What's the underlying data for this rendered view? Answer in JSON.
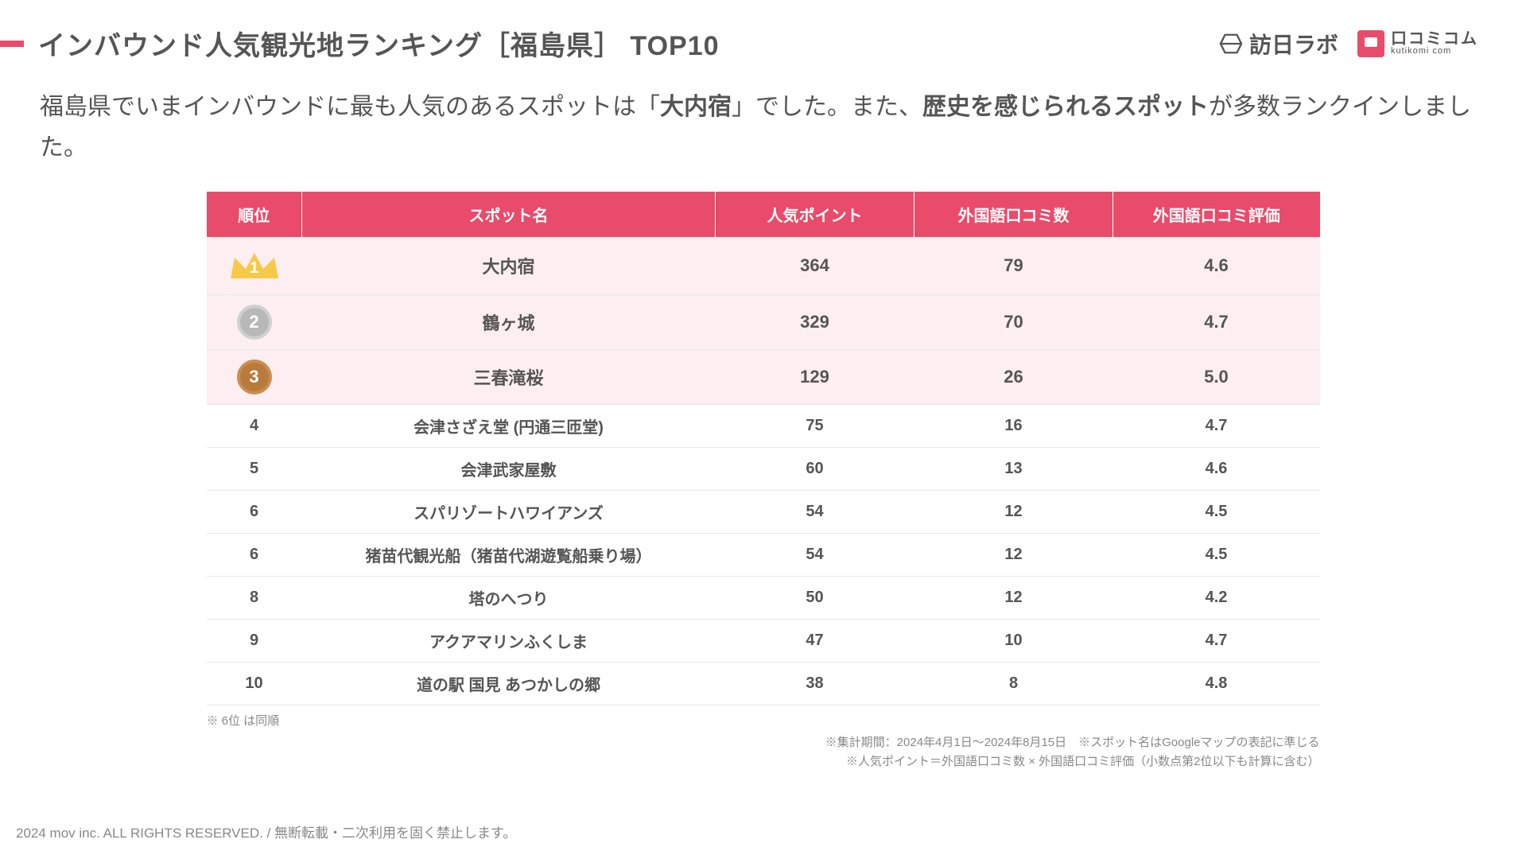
{
  "header": {
    "title": "インバウンド人気観光地ランキング［福島県］ TOP10",
    "logo1": "訪日ラボ",
    "logo2_jp": "口コミコム",
    "logo2_en": "kutikomi com"
  },
  "intro": {
    "pre": "福島県でいまインバウンドに最も人気のあるスポットは「",
    "bold1": "大内宿",
    "mid": "」でした。また、",
    "bold2": "歴史を感じられるスポット",
    "post": "が多数ランクインしました。"
  },
  "table": {
    "columns": [
      "順位",
      "スポット名",
      "人気ポイント",
      "外国語口コミ数",
      "外国語口コミ評価"
    ],
    "rows": [
      {
        "rank": "1",
        "name": "大内宿",
        "points": "364",
        "reviews": "79",
        "rating": "4.6",
        "medal": "gold"
      },
      {
        "rank": "2",
        "name": "鶴ヶ城",
        "points": "329",
        "reviews": "70",
        "rating": "4.7",
        "medal": "silver"
      },
      {
        "rank": "3",
        "name": "三春滝桜",
        "points": "129",
        "reviews": "26",
        "rating": "5.0",
        "medal": "bronze"
      },
      {
        "rank": "4",
        "name": "会津さざえ堂 (円通三匝堂)",
        "points": "75",
        "reviews": "16",
        "rating": "4.7"
      },
      {
        "rank": "5",
        "name": "会津武家屋敷",
        "points": "60",
        "reviews": "13",
        "rating": "4.6"
      },
      {
        "rank": "6",
        "name": "スパリゾートハワイアンズ",
        "points": "54",
        "reviews": "12",
        "rating": "4.5"
      },
      {
        "rank": "6",
        "name": "猪苗代観光船（猪苗代湖遊覧船乗り場）",
        "points": "54",
        "reviews": "12",
        "rating": "4.5"
      },
      {
        "rank": "8",
        "name": "塔のへつり",
        "points": "50",
        "reviews": "12",
        "rating": "4.2"
      },
      {
        "rank": "9",
        "name": "アクアマリンふくしま",
        "points": "47",
        "reviews": "10",
        "rating": "4.7"
      },
      {
        "rank": "10",
        "name": "道の駅 国見 あつかしの郷",
        "points": "38",
        "reviews": "8",
        "rating": "4.8"
      }
    ],
    "tie_note": "※ 6位 は同順",
    "note1": "※集計期間：2024年4月1日〜2024年8月15日　※スポット名はGoogleマップの表記に準じる",
    "note2": "※人気ポイント＝外国語口コミ数 × 外国語口コミ評価（小数点第2位以下も計算に含む）"
  },
  "footer": "2024 mov inc. ALL RIGHTS RESERVED. / 無断転載・二次利用を固く禁止します。",
  "colors": {
    "accent": "#e94b6a",
    "row_tint": "#fdeef1",
    "text": "#555555",
    "muted": "#888888",
    "gold": "#f7c948",
    "silver": "#b8b8b8",
    "bronze": "#b97a3c"
  }
}
